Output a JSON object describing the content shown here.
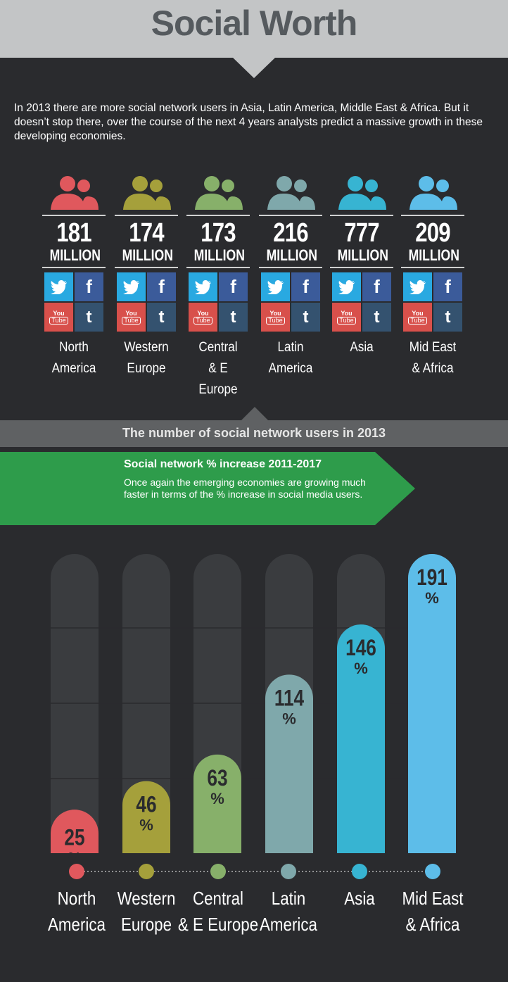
{
  "title": "Social Worth",
  "intro": "In 2013 there are more social network users in Asia, Latin America, Middle East & Africa. But it doesn’t stop there, over the course of the next 4 years analysts predict a massive growth in these developing economies.",
  "regions": [
    {
      "line1": "North",
      "line2": "America",
      "users": "181",
      "unit": "MILLION",
      "color": "#e0585d"
    },
    {
      "line1": "Western",
      "line2": "Europe",
      "users": "174",
      "unit": "MILLION",
      "color": "#a5a03b"
    },
    {
      "line1": "Central",
      "line2": "& E Europe",
      "users": "173",
      "unit": "MILLION",
      "color": "#87b06a"
    },
    {
      "line1": "Latin",
      "line2": "America",
      "users": "216",
      "unit": "MILLION",
      "color": "#7fa8ab"
    },
    {
      "line1": "Asia",
      "line2": "",
      "users": "777",
      "unit": "MILLION",
      "color": "#37b4d2"
    },
    {
      "line1": "Mid East",
      "line2": "& Africa",
      "users": "209",
      "unit": "MILLION",
      "color": "#5dbde9"
    }
  ],
  "social_icons": {
    "twitter": "twitter-icon",
    "facebook": "facebook-icon",
    "youtube": "youtube-icon",
    "tumblr": "tumblr-icon",
    "facebook_glyph": "f",
    "tumblr_glyph": "t",
    "youtube_top": "You",
    "youtube_bottom": "Tube"
  },
  "band_2013": "The number of social network users in 2013",
  "green_band": {
    "title": "Social network % increase 2011-2017",
    "text": "Once again the emerging economies are growing much faster in terms of the % increase in social media users."
  },
  "chart_data": {
    "type": "bar",
    "title": "Social network % increase 2011-2017",
    "categories": [
      "North America",
      "Western Europe",
      "Central & E Europe",
      "Latin America",
      "Asia",
      "Mid East & Africa"
    ],
    "category_lines": [
      [
        "North",
        "America"
      ],
      [
        "Western",
        "Europe"
      ],
      [
        "Central",
        "& E Europe"
      ],
      [
        "Latin",
        "America"
      ],
      [
        "Asia",
        ""
      ],
      [
        "Mid East",
        "& Africa"
      ]
    ],
    "values": [
      25,
      46,
      63,
      114,
      146,
      191
    ],
    "value_suffix": "%",
    "colors": [
      "#e0585d",
      "#a5a03b",
      "#87b06a",
      "#7fa8ab",
      "#37b4d2",
      "#5dbde9"
    ],
    "ylim": [
      0,
      191
    ]
  }
}
